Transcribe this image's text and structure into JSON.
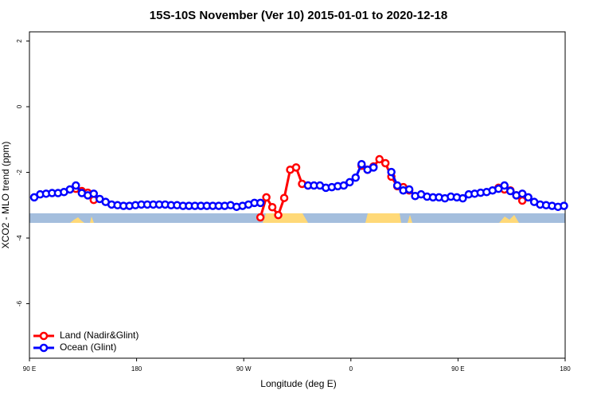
{
  "chart_data": {
    "type": "line",
    "title": "15S-10S November (Ver 10)   2015-01-01 to 2020-12-18",
    "x_label": "Longitude (deg E)",
    "y_label": "XCO2 - MLO trend (ppm)",
    "x": [
      94,
      99,
      104,
      109,
      114,
      119,
      124,
      129,
      134,
      139,
      144,
      149,
      154,
      159,
      164,
      169,
      174,
      179,
      184,
      189,
      194,
      199,
      204,
      209,
      214,
      219,
      224,
      229,
      234,
      239,
      244,
      249,
      254,
      259,
      264,
      269,
      274,
      279,
      284,
      289,
      294,
      299,
      304,
      309,
      314,
      319,
      324,
      329,
      334,
      339,
      344,
      349,
      354,
      359,
      364,
      369,
      374,
      379,
      384,
      389,
      394,
      399,
      404,
      409,
      414,
      419,
      424,
      429,
      434,
      439,
      444,
      449,
      454,
      459,
      464,
      469,
      474,
      479,
      484,
      489,
      494,
      499,
      504,
      509,
      514,
      519,
      524,
      529,
      534,
      539
    ],
    "series": [
      {
        "name": "Land (Nadir&Glint)",
        "color": "#ff0000",
        "values": [
          null,
          null,
          null,
          null,
          null,
          null,
          null,
          -2.5,
          -2.57,
          -2.62,
          -2.84,
          null,
          null,
          null,
          null,
          null,
          null,
          null,
          null,
          null,
          null,
          null,
          null,
          null,
          null,
          null,
          null,
          null,
          null,
          null,
          null,
          null,
          null,
          null,
          null,
          null,
          null,
          null,
          -3.37,
          -2.76,
          -3.06,
          -3.3,
          -2.78,
          -1.92,
          -1.85,
          -2.35,
          -2.4,
          null,
          null,
          null,
          null,
          null,
          null,
          null,
          null,
          -1.8,
          -1.92,
          -1.82,
          -1.6,
          -1.72,
          -2.13,
          -2.42,
          -2.45,
          -2.55,
          null,
          null,
          null,
          null,
          null,
          null,
          null,
          null,
          null,
          null,
          null,
          null,
          null,
          null,
          -2.47,
          -2.52,
          -2.55,
          -2.7,
          -2.86,
          null,
          null,
          null,
          null,
          null,
          null,
          null
        ]
      },
      {
        "name": "Ocean (Glint)",
        "color": "#0000ff",
        "values": [
          -2.76,
          -2.67,
          -2.65,
          -2.63,
          -2.63,
          -2.6,
          -2.52,
          -2.4,
          -2.63,
          -2.7,
          -2.65,
          -2.81,
          -2.9,
          -2.98,
          -3.0,
          -3.02,
          -3.02,
          -3.0,
          -2.98,
          -2.98,
          -2.98,
          -2.98,
          -2.98,
          -3.0,
          -3.0,
          -3.02,
          -3.02,
          -3.02,
          -3.02,
          -3.02,
          -3.02,
          -3.02,
          -3.02,
          -3.0,
          -3.05,
          -3.02,
          -2.98,
          -2.93,
          -2.93,
          null,
          null,
          null,
          null,
          null,
          null,
          null,
          -2.4,
          -2.4,
          -2.4,
          -2.47,
          -2.45,
          -2.42,
          -2.4,
          -2.3,
          -2.16,
          -1.75,
          -1.92,
          -1.85,
          null,
          null,
          -1.99,
          -2.4,
          -2.55,
          -2.52,
          -2.72,
          -2.67,
          -2.74,
          -2.76,
          -2.76,
          -2.79,
          -2.74,
          -2.76,
          -2.79,
          -2.67,
          -2.65,
          -2.62,
          -2.6,
          -2.55,
          -2.5,
          -2.4,
          -2.57,
          -2.7,
          -2.65,
          -2.76,
          -2.9,
          -2.98,
          -3.0,
          -3.02,
          -3.05,
          -3.02
        ]
      }
    ],
    "xlim": [
      90,
      540
    ],
    "ylim": [
      -7.66,
      2.28
    ],
    "xticks": [
      {
        "value": 90,
        "label": "90 E"
      },
      180,
      {
        "value": 270,
        "label": "90 W"
      },
      {
        "value": 360,
        "label": "0"
      },
      {
        "value": 450,
        "label": "90 E"
      },
      {
        "value": 540,
        "label": "180"
      }
    ],
    "yticks": [
      2,
      0,
      -2,
      -4,
      -6
    ],
    "legend": "bottomleft"
  }
}
